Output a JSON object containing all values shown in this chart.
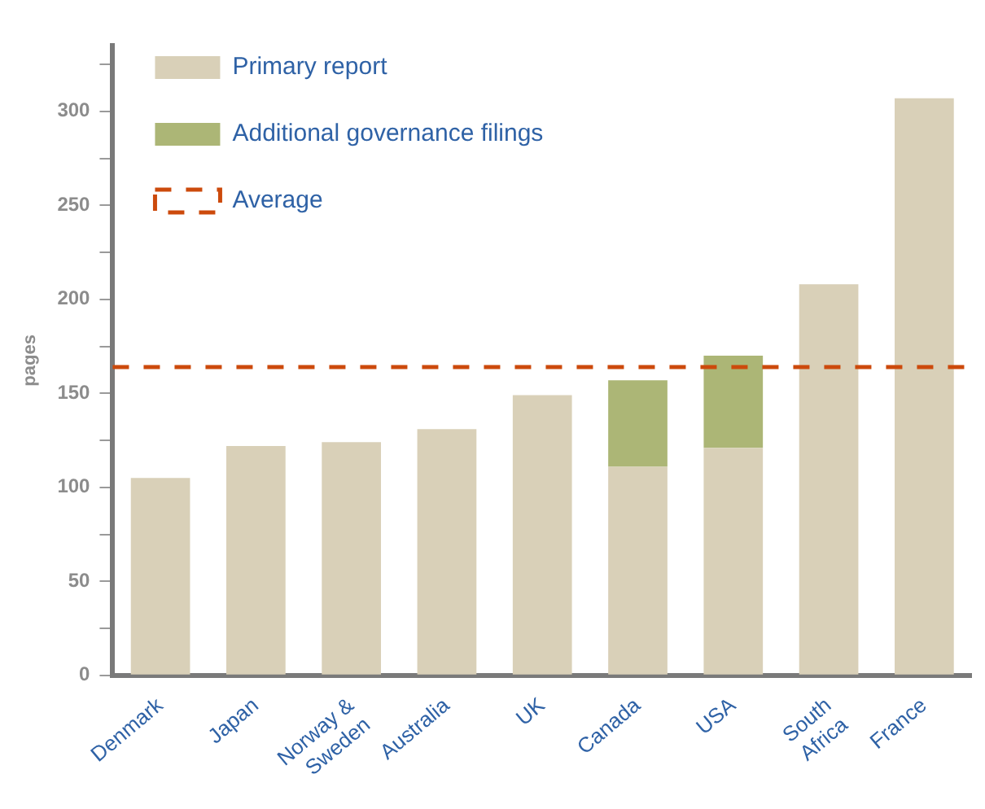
{
  "chart_data": {
    "type": "bar",
    "ylabel": "pages",
    "categories": [
      "Denmark",
      "Japan",
      "Norway & Sweden",
      "Australia",
      "UK",
      "Canada",
      "USA",
      "South Africa",
      "France"
    ],
    "stacked": true,
    "series": [
      {
        "name": "Primary report",
        "color": "#d9d0b8",
        "values": [
          105,
          122,
          124,
          131,
          149,
          111,
          121,
          208,
          307
        ]
      },
      {
        "name": "Additional governance filings",
        "color": "#acb676",
        "values": [
          null,
          null,
          null,
          null,
          null,
          46,
          49,
          null,
          null
        ]
      }
    ],
    "ref_lines": [
      {
        "axis": "y",
        "value": 164,
        "label": "Average",
        "color": "#cc4a0c",
        "line_style": "dashed"
      }
    ],
    "ylim": [
      0,
      335
    ],
    "yticks": [
      0,
      {
        "value": 25,
        "label": null
      },
      50,
      {
        "value": 75,
        "label": null
      },
      100,
      {
        "value": 125,
        "label": null
      },
      150,
      {
        "value": 175,
        "label": null
      },
      200,
      {
        "value": 225,
        "label": null
      },
      250,
      {
        "value": 275,
        "label": null
      },
      300,
      {
        "value": 325,
        "label": null
      }
    ],
    "legend": "top left"
  }
}
